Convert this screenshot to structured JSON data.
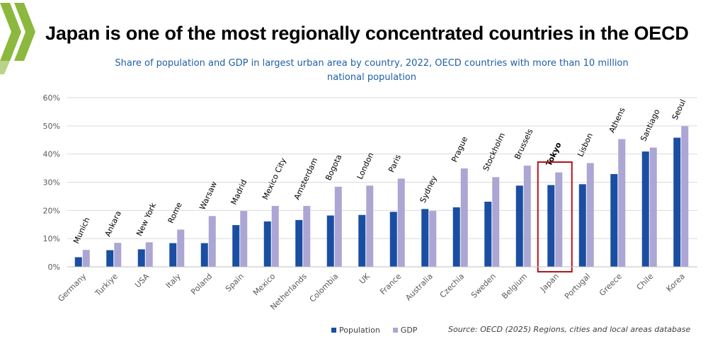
{
  "title": "Japan is one of the most regionally concentrated countries in the OECD",
  "subtitle_line1": "Share of population and GDP in largest urban area by country, 2022, OECD countries with more than 10 million",
  "subtitle_line2": "national population",
  "source": "Source: OECD (2025) Regions, cities and local areas database",
  "colors": {
    "population": "#1a4ea2",
    "gdp": "#aba6d4",
    "highlight": "#b5121b",
    "logo": "#8cb83e"
  },
  "chart_data": {
    "type": "bar",
    "ylim": [
      0,
      60
    ],
    "yticks": [
      0,
      10,
      20,
      30,
      40,
      50,
      60
    ],
    "ytick_labels": [
      "0%",
      "10%",
      "20%",
      "30%",
      "40%",
      "50%",
      "60%"
    ],
    "grid": true,
    "categories": [
      "Germany",
      "Turkiye",
      "USA",
      "Italy",
      "Poland",
      "Spain",
      "Mexico",
      "Netherlands",
      "Colombia",
      "UK",
      "France",
      "Australia",
      "Czechia",
      "Sweden",
      "Belgium",
      "Japan",
      "Portugal",
      "Greece",
      "Chile",
      "Korea"
    ],
    "cities": [
      "Munich",
      "Ankara",
      "New York",
      "Rome",
      "Warsaw",
      "Madrid",
      "Mexico City",
      "Amsterdam",
      "Bogota",
      "London",
      "Paris",
      "Sydney",
      "Prague",
      "Stockholm",
      "Brussels",
      "Tokyo",
      "Lisbon",
      "Athens",
      "Santiago",
      "Seoul"
    ],
    "highlight": "Japan",
    "series": [
      {
        "name": "Population",
        "values": [
          3.4,
          5.9,
          6.2,
          8.4,
          8.4,
          14.8,
          16.1,
          16.6,
          18.2,
          18.4,
          19.5,
          20.5,
          21.1,
          23.1,
          28.8,
          29.0,
          29.3,
          32.9,
          40.9,
          45.8
        ]
      },
      {
        "name": "GDP",
        "values": [
          6.0,
          8.5,
          8.7,
          13.2,
          18.0,
          19.8,
          21.6,
          21.6,
          28.4,
          28.8,
          31.3,
          19.8,
          34.9,
          31.8,
          35.9,
          33.5,
          36.8,
          45.3,
          42.3,
          49.9
        ]
      }
    ]
  }
}
